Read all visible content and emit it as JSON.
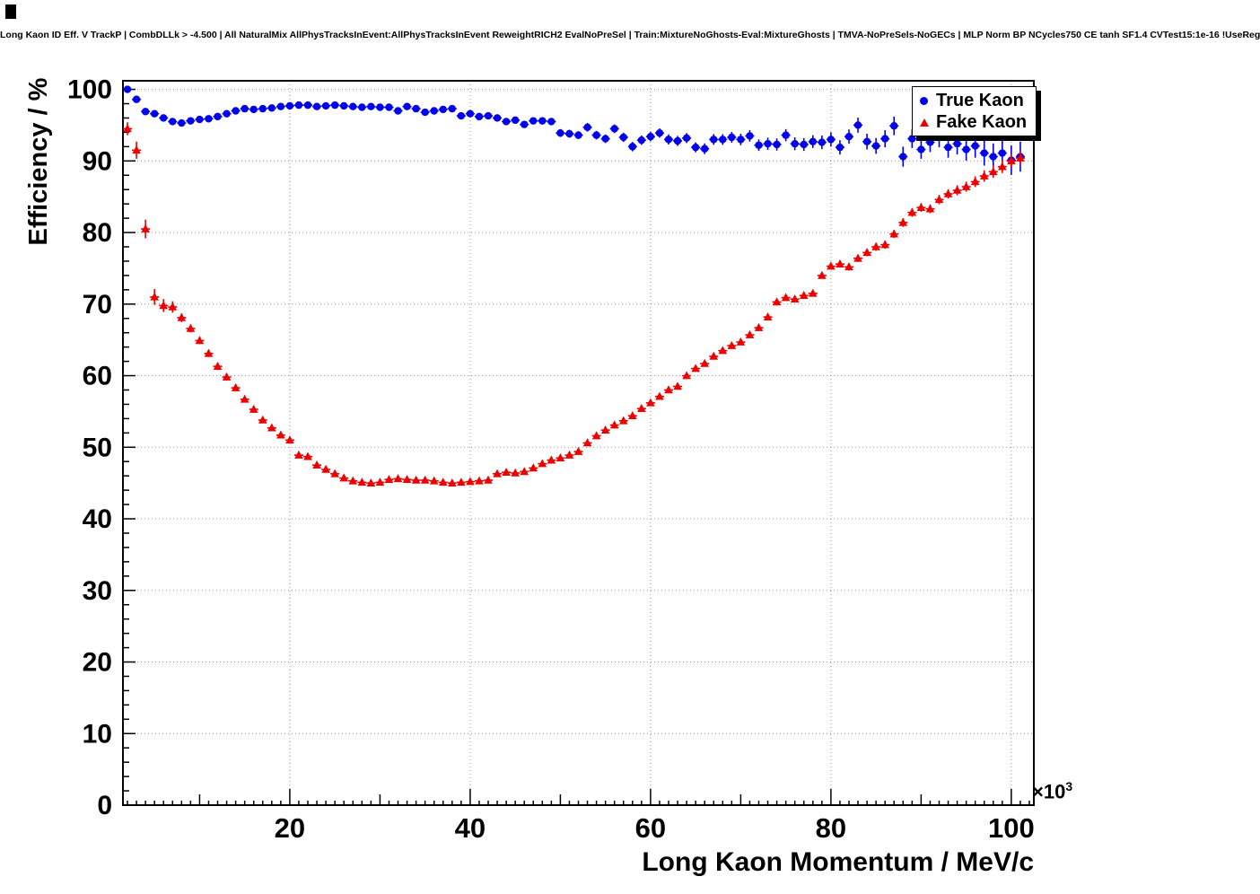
{
  "page": {
    "title": "Long Kaon ID Eff. V TrackP | CombDLLk > -4.500 | All NaturalMix AllPhysTracksInEvent:AllPhysTracksInEvent ReweightRICH2 EvalNoPreSel | Train:MixtureNoGhosts-Eval:MixtureGhosts | TMVA-NoPreSels-NoGECs | MLP Norm BP NCycles750 CE tanh SF1.4 CVTest15:1e-16 !UseReg"
  },
  "chart_data": {
    "type": "scatter",
    "title": "Long Kaon ID Eff. V TrackP | CombDLLk > -4.500 | All NaturalMix AllPhysTracksInEvent:AllPhysTracksInEvent ReweightRICH2 EvalNoPreSel | Train:MixtureNoGhosts-Eval:MixtureGhosts | TMVA-NoPreSels-NoGECs | MLP Norm BP NCycles750 CE tanh SF1.4 CVTest15:1e-16 !UseReg",
    "xlabel": "Long Kaon Momentum / MeV/c",
    "ylabel": "Efficiency / %",
    "x_scale": {
      "base": "×10",
      "exp": "3"
    },
    "xlim": [
      1.5,
      102.5
    ],
    "ylim": [
      0,
      101.2
    ],
    "x_major_ticks": [
      20,
      40,
      60,
      80,
      100
    ],
    "y_major_ticks": [
      0,
      10,
      20,
      30,
      40,
      50,
      60,
      70,
      80,
      90,
      100
    ],
    "y_grid": [
      10,
      20,
      30,
      40,
      50,
      60,
      70,
      80,
      90,
      100
    ],
    "grid": true,
    "grid_style": "dotted",
    "legend_position": "top-right",
    "bin_half_width": 0.5,
    "series": [
      {
        "name": "True Kaon",
        "marker": "circle",
        "color": "#0000ee",
        "x": [
          2,
          3,
          4,
          5,
          6,
          7,
          8,
          9,
          10,
          11,
          12,
          13,
          14,
          15,
          16,
          17,
          18,
          19,
          20,
          21,
          22,
          23,
          24,
          25,
          26,
          27,
          28,
          29,
          30,
          31,
          32,
          33,
          34,
          35,
          36,
          37,
          38,
          39,
          40,
          41,
          42,
          43,
          44,
          45,
          46,
          47,
          48,
          49,
          50,
          51,
          52,
          53,
          54,
          55,
          56,
          57,
          58,
          59,
          60,
          61,
          62,
          63,
          64,
          65,
          66,
          67,
          68,
          69,
          70,
          71,
          72,
          73,
          74,
          75,
          76,
          77,
          78,
          79,
          80,
          81,
          82,
          83,
          84,
          85,
          86,
          87,
          88,
          89,
          90,
          91,
          92,
          93,
          94,
          95,
          96,
          97,
          98,
          99,
          100,
          101
        ],
        "y": [
          100.0,
          98.6,
          96.9,
          96.6,
          96.0,
          95.5,
          95.3,
          95.6,
          95.8,
          95.9,
          96.2,
          96.6,
          97.0,
          97.3,
          97.2,
          97.3,
          97.4,
          97.6,
          97.7,
          97.8,
          97.8,
          97.6,
          97.7,
          97.8,
          97.7,
          97.6,
          97.5,
          97.6,
          97.5,
          97.5,
          97.0,
          97.6,
          97.3,
          96.8,
          97.0,
          97.2,
          97.3,
          96.3,
          96.6,
          96.2,
          96.3,
          96.0,
          95.5,
          95.7,
          95.1,
          95.6,
          95.6,
          95.5,
          93.9,
          93.8,
          93.6,
          94.7,
          93.6,
          93.1,
          94.5,
          93.3,
          92.0,
          92.9,
          93.4,
          93.9,
          93.0,
          92.8,
          93.2,
          91.9,
          91.7,
          93.0,
          93.0,
          93.3,
          93.0,
          93.5,
          92.2,
          92.4,
          92.3,
          93.6,
          92.4,
          92.3,
          92.7,
          92.6,
          93.0,
          91.9,
          93.4,
          95.0,
          92.7,
          92.1,
          93.1,
          94.9,
          90.6,
          93.1,
          91.6,
          92.6,
          93.3,
          91.9,
          92.4,
          91.6,
          92.1,
          91.1,
          90.6,
          91.1,
          90.1,
          90.6
        ],
        "yerr": [
          0.15,
          0.2,
          0.22,
          0.25,
          0.25,
          0.28,
          0.3,
          0.3,
          0.3,
          0.3,
          0.3,
          0.3,
          0.3,
          0.3,
          0.3,
          0.3,
          0.3,
          0.3,
          0.3,
          0.3,
          0.3,
          0.3,
          0.3,
          0.3,
          0.3,
          0.3,
          0.3,
          0.3,
          0.35,
          0.35,
          0.35,
          0.35,
          0.35,
          0.35,
          0.35,
          0.35,
          0.35,
          0.35,
          0.4,
          0.4,
          0.4,
          0.4,
          0.4,
          0.45,
          0.45,
          0.45,
          0.5,
          0.5,
          0.55,
          0.55,
          0.55,
          0.6,
          0.6,
          0.6,
          0.6,
          0.65,
          0.65,
          0.65,
          0.65,
          0.65,
          0.7,
          0.7,
          0.7,
          0.7,
          0.75,
          0.75,
          0.75,
          0.75,
          0.8,
          0.8,
          0.8,
          0.85,
          0.85,
          0.85,
          0.9,
          0.9,
          0.9,
          0.95,
          1.0,
          1.0,
          1.0,
          1.05,
          1.1,
          1.1,
          1.2,
          1.3,
          1.4,
          1.3,
          1.3,
          1.35,
          1.4,
          1.45,
          1.5,
          1.55,
          1.65,
          1.75,
          1.85,
          1.95,
          2.05,
          2.1
        ]
      },
      {
        "name": "Fake Kaon",
        "marker": "triangle",
        "color": "#ee0000",
        "x": [
          2,
          3,
          4,
          5,
          6,
          7,
          8,
          9,
          10,
          11,
          12,
          13,
          14,
          15,
          16,
          17,
          18,
          19,
          20,
          21,
          22,
          23,
          24,
          25,
          26,
          27,
          28,
          29,
          30,
          31,
          32,
          33,
          34,
          35,
          36,
          37,
          38,
          39,
          40,
          41,
          42,
          43,
          44,
          45,
          46,
          47,
          48,
          49,
          50,
          51,
          52,
          53,
          54,
          55,
          56,
          57,
          58,
          59,
          60,
          61,
          62,
          63,
          64,
          65,
          66,
          67,
          68,
          69,
          70,
          71,
          72,
          73,
          74,
          75,
          76,
          77,
          78,
          79,
          80,
          81,
          82,
          83,
          84,
          85,
          86,
          87,
          88,
          89,
          90,
          91,
          92,
          93,
          94,
          95,
          96,
          97,
          98,
          99,
          100,
          101
        ],
        "y": [
          94.5,
          91.5,
          80.5,
          71.0,
          69.8,
          69.6,
          68.1,
          66.6,
          64.9,
          63.1,
          61.3,
          59.8,
          58.3,
          56.7,
          55.3,
          53.8,
          52.7,
          51.7,
          51.0,
          48.9,
          48.7,
          47.5,
          46.9,
          46.3,
          45.7,
          45.3,
          45.1,
          45.0,
          45.1,
          45.5,
          45.6,
          45.5,
          45.4,
          45.4,
          45.3,
          45.1,
          45.0,
          45.1,
          45.2,
          45.3,
          45.4,
          46.3,
          46.5,
          46.4,
          46.6,
          47.1,
          47.7,
          48.2,
          48.5,
          48.9,
          49.4,
          50.6,
          51.6,
          52.4,
          53.1,
          53.7,
          54.4,
          55.4,
          56.2,
          57.1,
          58.0,
          58.5,
          60.0,
          61.0,
          61.7,
          62.7,
          63.5,
          64.2,
          64.7,
          65.7,
          66.7,
          68.2,
          70.3,
          70.9,
          70.7,
          71.2,
          71.5,
          74.0,
          75.3,
          75.6,
          75.2,
          76.4,
          77.2,
          78.0,
          78.3,
          79.8,
          81.4,
          82.8,
          83.5,
          83.3,
          84.6,
          85.4,
          85.9,
          86.4,
          87.1,
          87.9,
          88.5,
          89.2,
          90.0,
          90.4
        ],
        "yerr": [
          0.9,
          1.2,
          1.3,
          1.1,
          0.9,
          0.8,
          0.6,
          0.55,
          0.5,
          0.5,
          0.5,
          0.5,
          0.45,
          0.45,
          0.4,
          0.4,
          0.4,
          0.4,
          0.35,
          0.3,
          0.3,
          0.3,
          0.28,
          0.28,
          0.25,
          0.25,
          0.25,
          0.25,
          0.25,
          0.25,
          0.25,
          0.25,
          0.25,
          0.25,
          0.25,
          0.25,
          0.25,
          0.25,
          0.25,
          0.25,
          0.25,
          0.25,
          0.25,
          0.28,
          0.28,
          0.28,
          0.3,
          0.3,
          0.3,
          0.3,
          0.3,
          0.3,
          0.3,
          0.3,
          0.3,
          0.3,
          0.3,
          0.3,
          0.35,
          0.35,
          0.35,
          0.35,
          0.35,
          0.35,
          0.35,
          0.35,
          0.35,
          0.35,
          0.4,
          0.4,
          0.4,
          0.4,
          0.4,
          0.4,
          0.4,
          0.4,
          0.4,
          0.4,
          0.5,
          0.5,
          0.5,
          0.5,
          0.5,
          0.55,
          0.55,
          0.55,
          0.6,
          0.6,
          0.6,
          0.6,
          0.65,
          0.65,
          0.7,
          0.7,
          0.75,
          0.8,
          0.85,
          0.9,
          0.9,
          0.95
        ]
      }
    ]
  }
}
